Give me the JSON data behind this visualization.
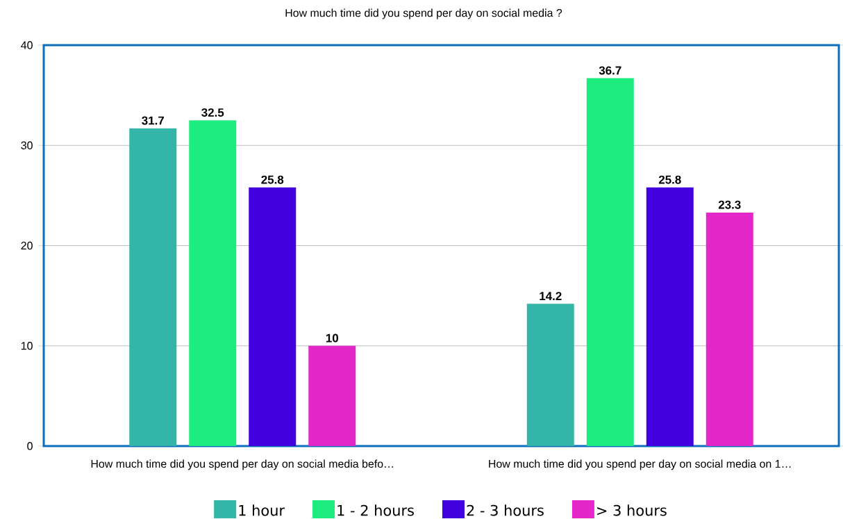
{
  "chart_data": {
    "type": "bar",
    "title": "How much time did you spend per day on social media ?",
    "categories": [
      "How much time did you spend per day on social media befo…",
      "How much time did you spend per day on social media on 1…"
    ],
    "series": [
      {
        "name": "1 hour",
        "color": "#33b5a8",
        "values": [
          31.7,
          14.2
        ]
      },
      {
        "name": "1 - 2 hours",
        "color": "#1ded7f",
        "values": [
          32.5,
          36.7
        ]
      },
      {
        "name": "2 - 3 hours",
        "color": "#4200de",
        "values": [
          25.8,
          25.8
        ]
      },
      {
        "name": "> 3 hours",
        "color": "#e327c8",
        "values": [
          10,
          23.3
        ]
      }
    ],
    "ylim": [
      0,
      40
    ],
    "yticks": [
      0,
      10,
      20,
      30,
      40
    ],
    "grid": "y",
    "legend": "bottom",
    "data_labels": true
  }
}
